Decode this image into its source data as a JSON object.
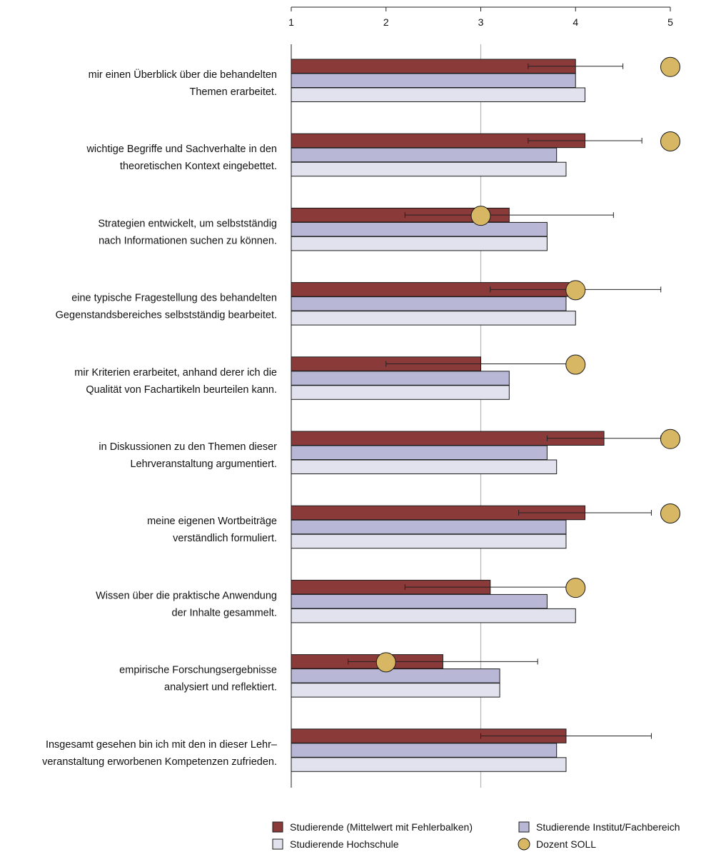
{
  "chart_data": {
    "type": "bar",
    "orientation": "horizontal",
    "xlim": [
      1,
      5
    ],
    "xticks": [
      "1",
      "2",
      "3",
      "4",
      "5"
    ],
    "reference_line": 3,
    "categories": [
      [
        "mir einen Überblick über die behandelten",
        "Themen erarbeitet."
      ],
      [
        "wichtige Begriffe und Sachverhalte in den",
        "theoretischen Kontext eingebettet."
      ],
      [
        "Strategien entwickelt, um selbstständig",
        "nach Informationen suchen zu können."
      ],
      [
        "eine typische Fragestellung des behandelten",
        "Gegenstandsbereiches selbstständig bearbeitet."
      ],
      [
        "mir Kriterien erarbeitet, anhand derer ich die",
        "Qualität von Fachartikeln beurteilen kann."
      ],
      [
        "in Diskussionen zu den Themen dieser",
        "Lehrveranstaltung argumentiert."
      ],
      [
        "meine eigenen Wortbeiträge",
        "verständlich formuliert."
      ],
      [
        "Wissen über die praktische Anwendung",
        "der Inhalte gesammelt."
      ],
      [
        "empirische Forschungsergebnisse",
        "analysiert und reflektiert."
      ],
      [
        "Insgesamt gesehen bin ich mit den in dieser Lehr–",
        "veranstaltung erworbenen Kompetenzen zufrieden."
      ]
    ],
    "series": [
      {
        "name": "Studierende (Mittelwert mit Fehlerbalken)",
        "color": "#8B3A3A",
        "values": [
          4.0,
          4.1,
          3.3,
          4.0,
          3.0,
          4.3,
          4.1,
          3.1,
          2.6,
          3.9
        ],
        "error_low": [
          3.5,
          3.5,
          2.2,
          3.1,
          2.0,
          3.7,
          3.4,
          2.2,
          1.6,
          3.0
        ],
        "error_high": [
          4.5,
          4.7,
          4.4,
          4.9,
          4.0,
          4.9,
          4.8,
          4.0,
          3.6,
          4.8
        ]
      },
      {
        "name": "Studierende Institut/Fachbereich",
        "color": "#B8B8D6",
        "values": [
          4.0,
          3.8,
          3.7,
          3.9,
          3.3,
          3.7,
          3.9,
          3.7,
          3.2,
          3.8
        ]
      },
      {
        "name": "Studierende Hochschule",
        "color": "#E2E2EE",
        "values": [
          4.1,
          3.9,
          3.7,
          4.0,
          3.3,
          3.8,
          3.9,
          4.0,
          3.2,
          3.9
        ]
      }
    ],
    "target": {
      "name": "Dozent SOLL",
      "color": "#D7B764",
      "values": [
        5,
        5,
        3,
        4,
        4,
        5,
        5,
        4,
        2,
        null
      ]
    },
    "legend_position": "bottom"
  }
}
